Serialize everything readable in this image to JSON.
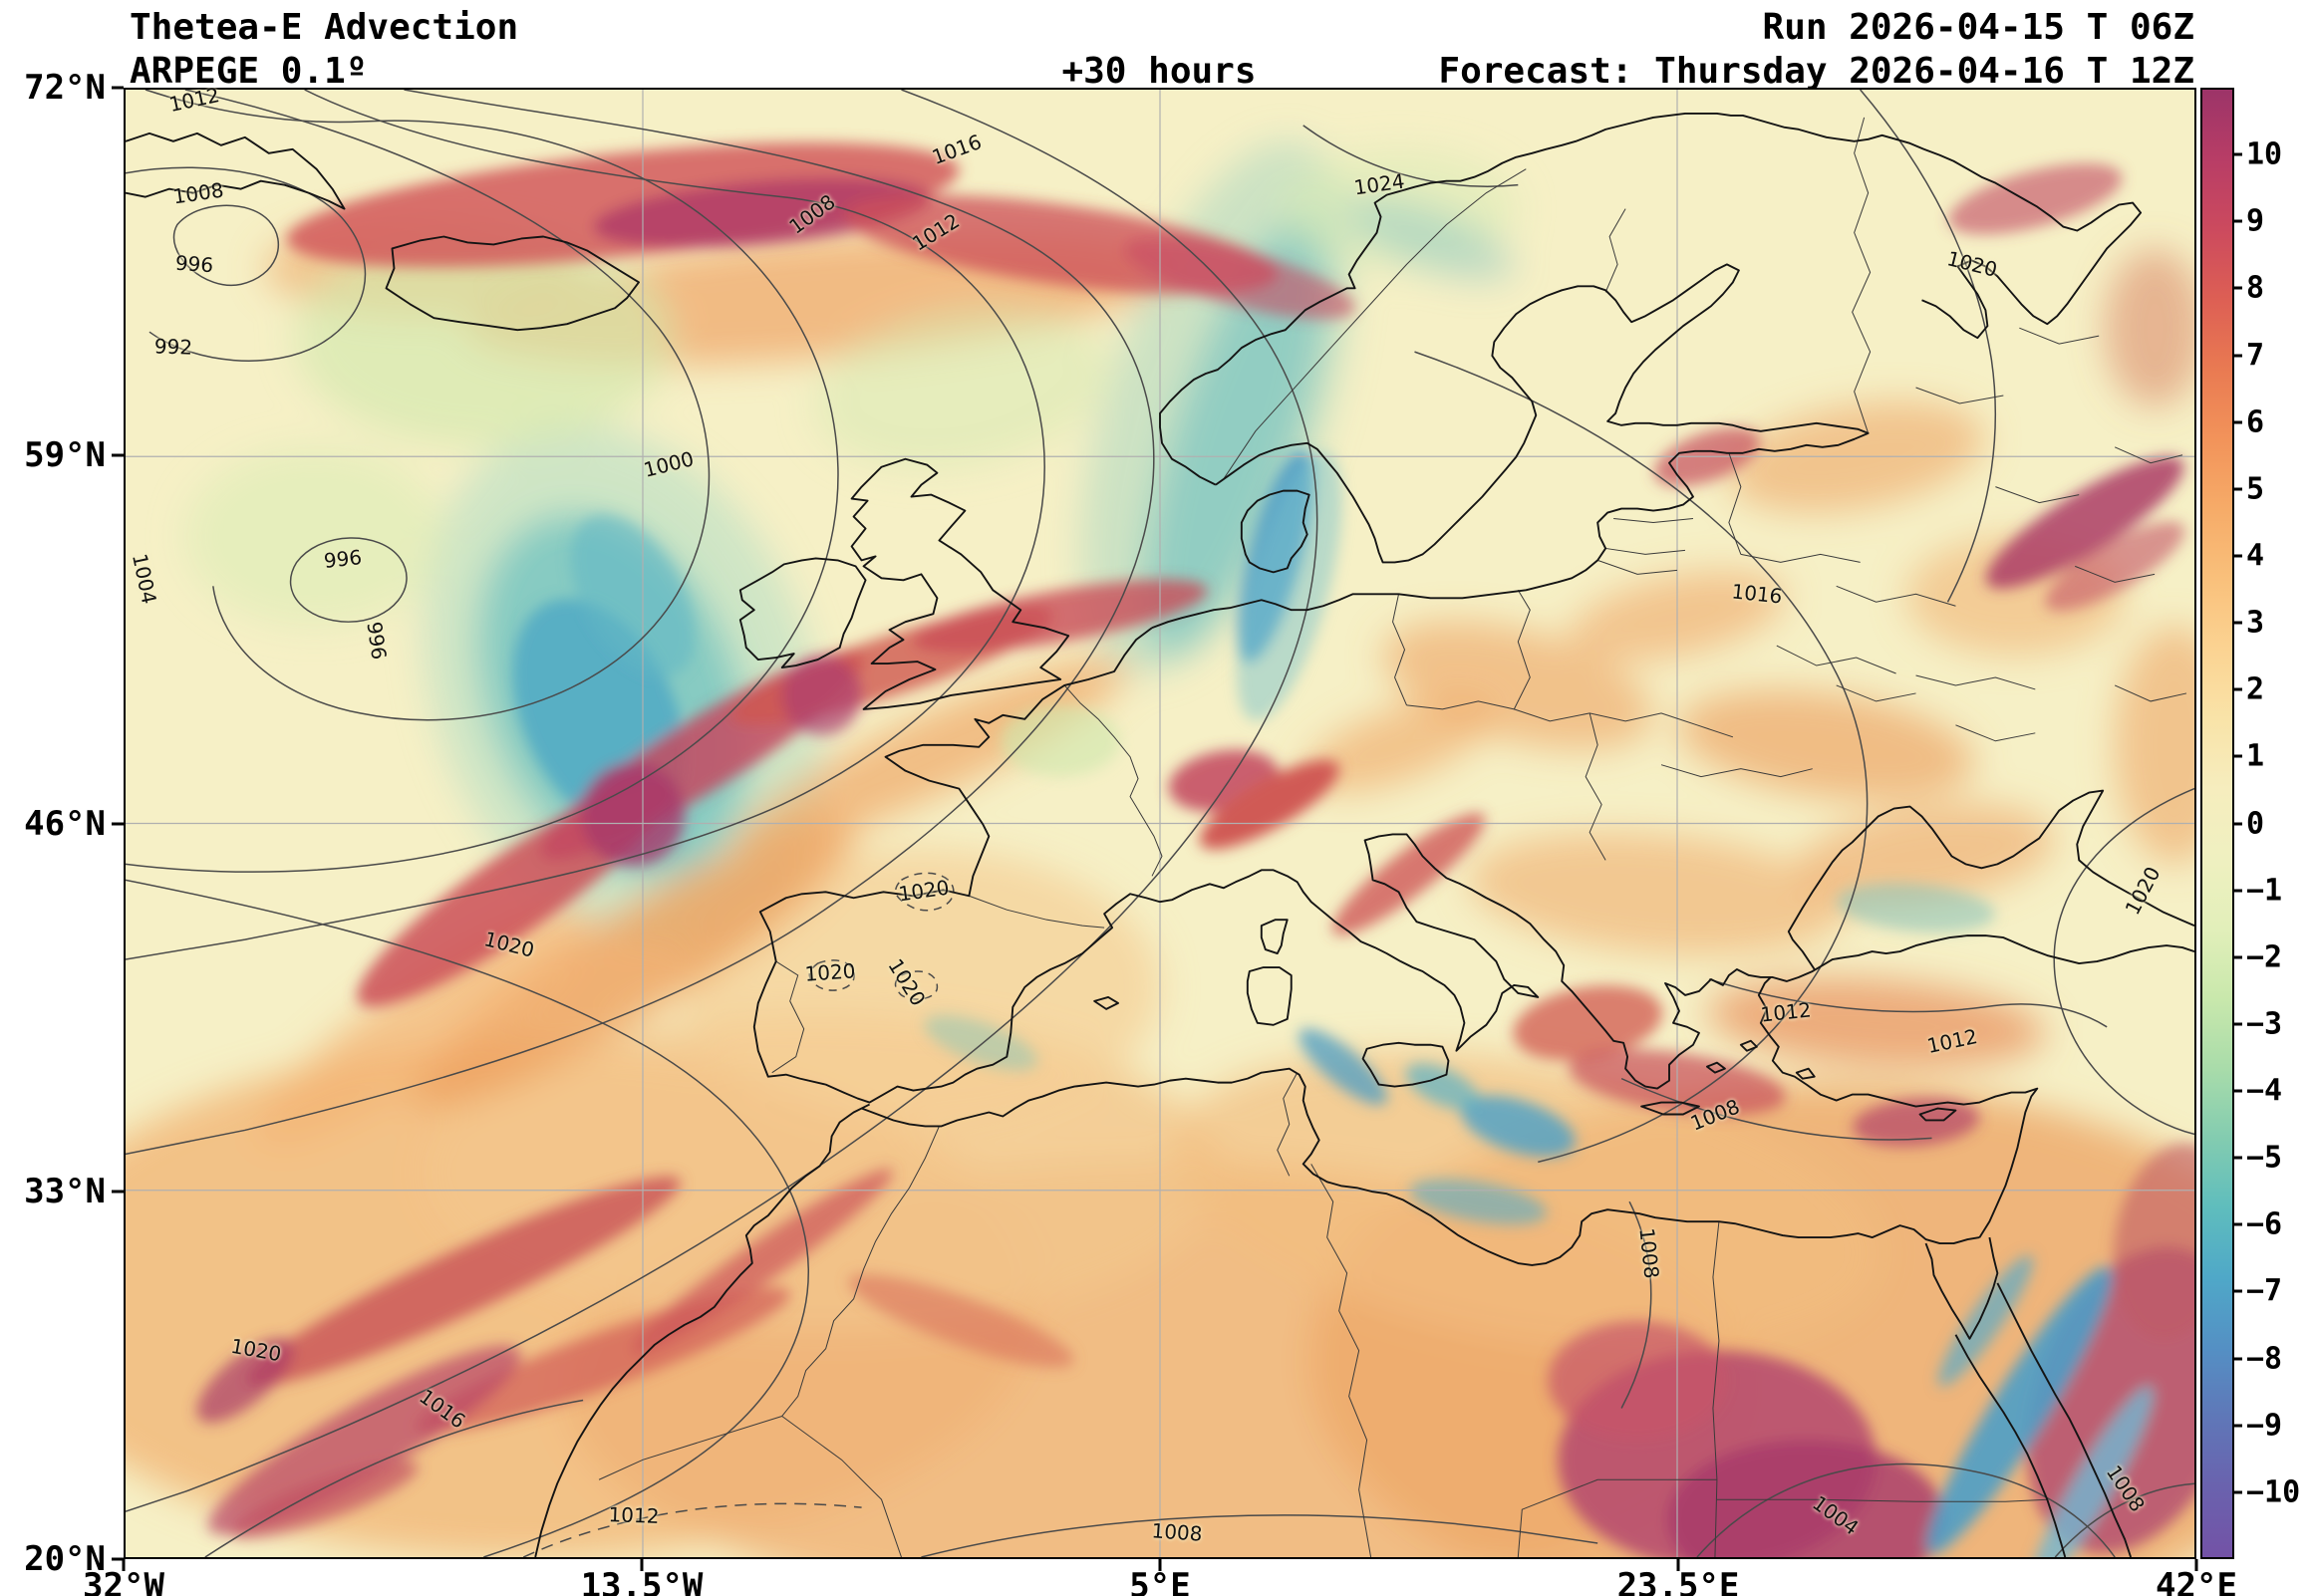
{
  "header": {
    "title": "Thetea-E Advection",
    "model": "ARPEGE 0.1º",
    "lead": "+30 hours",
    "run": "Run 2026-04-15 T 06Z",
    "forecast": "Forecast: Thursday 2026-04-16 T 12Z"
  },
  "chart_data": {
    "type": "heatmap",
    "title": "Thetea-E Advection",
    "model": "ARPEGE 0.1º",
    "run_time": "2026-04-15 T 06Z",
    "forecast_lead": "+30 hours",
    "valid_time": "Thursday 2026-04-16 T 12Z",
    "region": "Europe / North Atlantic / North Africa",
    "x_axis": {
      "ticks": [
        "32°W",
        "13.5°W",
        "5°E",
        "23.5°E",
        "42°E"
      ]
    },
    "y_axis": {
      "ticks": [
        "72°N",
        "59°N",
        "46°N",
        "33°N",
        "20°N"
      ]
    },
    "grid": true,
    "colorbar": {
      "position": "right",
      "ticks": [
        "10",
        "9",
        "8",
        "7",
        "6",
        "5",
        "4",
        "3",
        "2",
        "1",
        "0",
        "−1",
        "−2",
        "−3",
        "−4",
        "−5",
        "−6",
        "−7",
        "−8",
        "−9",
        "−10"
      ],
      "segment_colors": [
        "#9c3468",
        "#b83d66",
        "#cc4a5e",
        "#dd5f54",
        "#e97a52",
        "#f2935a",
        "#f6ab68",
        "#f9c07b",
        "#fbd392",
        "#f9e3a8",
        "#f6edbe",
        "#eff0c0",
        "#e2efba",
        "#c9e8ac",
        "#a9dcaa",
        "#83ccb0",
        "#5fbdbd",
        "#4fa8c8",
        "#5490c4",
        "#5f77b8",
        "#6a62ae",
        "#7352a6"
      ]
    },
    "isobar_values_hpa": [
      992,
      996,
      1000,
      1004,
      1008,
      1012,
      1016,
      1020,
      1024
    ],
    "isobar_labels": [
      {
        "t": "1012",
        "x": 3.4,
        "y": 0.8,
        "r": -12
      },
      {
        "t": "1008",
        "x": 3.6,
        "y": 7.2,
        "r": -8
      },
      {
        "t": "996",
        "x": 3.4,
        "y": 12.0,
        "r": 4
      },
      {
        "t": "992",
        "x": 2.4,
        "y": 17.6,
        "r": 2
      },
      {
        "t": "1000",
        "x": 26.3,
        "y": 25.6,
        "r": -14
      },
      {
        "t": "996",
        "x": 10.6,
        "y": 32.0,
        "r": -6
      },
      {
        "t": "996",
        "x": 12.2,
        "y": 37.6,
        "r": 82
      },
      {
        "t": "1004",
        "x": 1.0,
        "y": 33.4,
        "r": 78
      },
      {
        "t": "1008",
        "x": 33.2,
        "y": 8.6,
        "r": -36
      },
      {
        "t": "1016",
        "x": 40.2,
        "y": 4.2,
        "r": -20
      },
      {
        "t": "1012",
        "x": 39.2,
        "y": 9.8,
        "r": -32
      },
      {
        "t": "1024",
        "x": 60.6,
        "y": 6.6,
        "r": -8
      },
      {
        "t": "1020",
        "x": 89.2,
        "y": 12.0,
        "r": 14
      },
      {
        "t": "1016",
        "x": 78.8,
        "y": 34.4,
        "r": 6
      },
      {
        "t": "1020",
        "x": 97.4,
        "y": 54.6,
        "r": -62
      },
      {
        "t": "1020",
        "x": 18.6,
        "y": 58.2,
        "r": 14
      },
      {
        "t": "1020",
        "x": 38.6,
        "y": 54.6,
        "r": -8
      },
      {
        "t": "1020",
        "x": 34.1,
        "y": 60.1,
        "r": -4
      },
      {
        "t": "1020",
        "x": 37.8,
        "y": 60.8,
        "r": 58
      },
      {
        "t": "1012",
        "x": 80.2,
        "y": 62.8,
        "r": -6
      },
      {
        "t": "1012",
        "x": 88.2,
        "y": 64.8,
        "r": -12
      },
      {
        "t": "1008",
        "x": 76.8,
        "y": 69.8,
        "r": -22
      },
      {
        "t": "1008",
        "x": 73.6,
        "y": 79.2,
        "r": 84
      },
      {
        "t": "1020",
        "x": 6.4,
        "y": 85.8,
        "r": 10
      },
      {
        "t": "1016",
        "x": 15.4,
        "y": 89.8,
        "r": 36
      },
      {
        "t": "1012",
        "x": 24.6,
        "y": 97.0,
        "r": 2
      },
      {
        "t": "1008",
        "x": 50.8,
        "y": 98.2,
        "r": 4
      },
      {
        "t": "1004",
        "x": 82.6,
        "y": 97.0,
        "r": 36
      },
      {
        "t": "1008",
        "x": 96.6,
        "y": 95.2,
        "r": 56
      }
    ]
  }
}
